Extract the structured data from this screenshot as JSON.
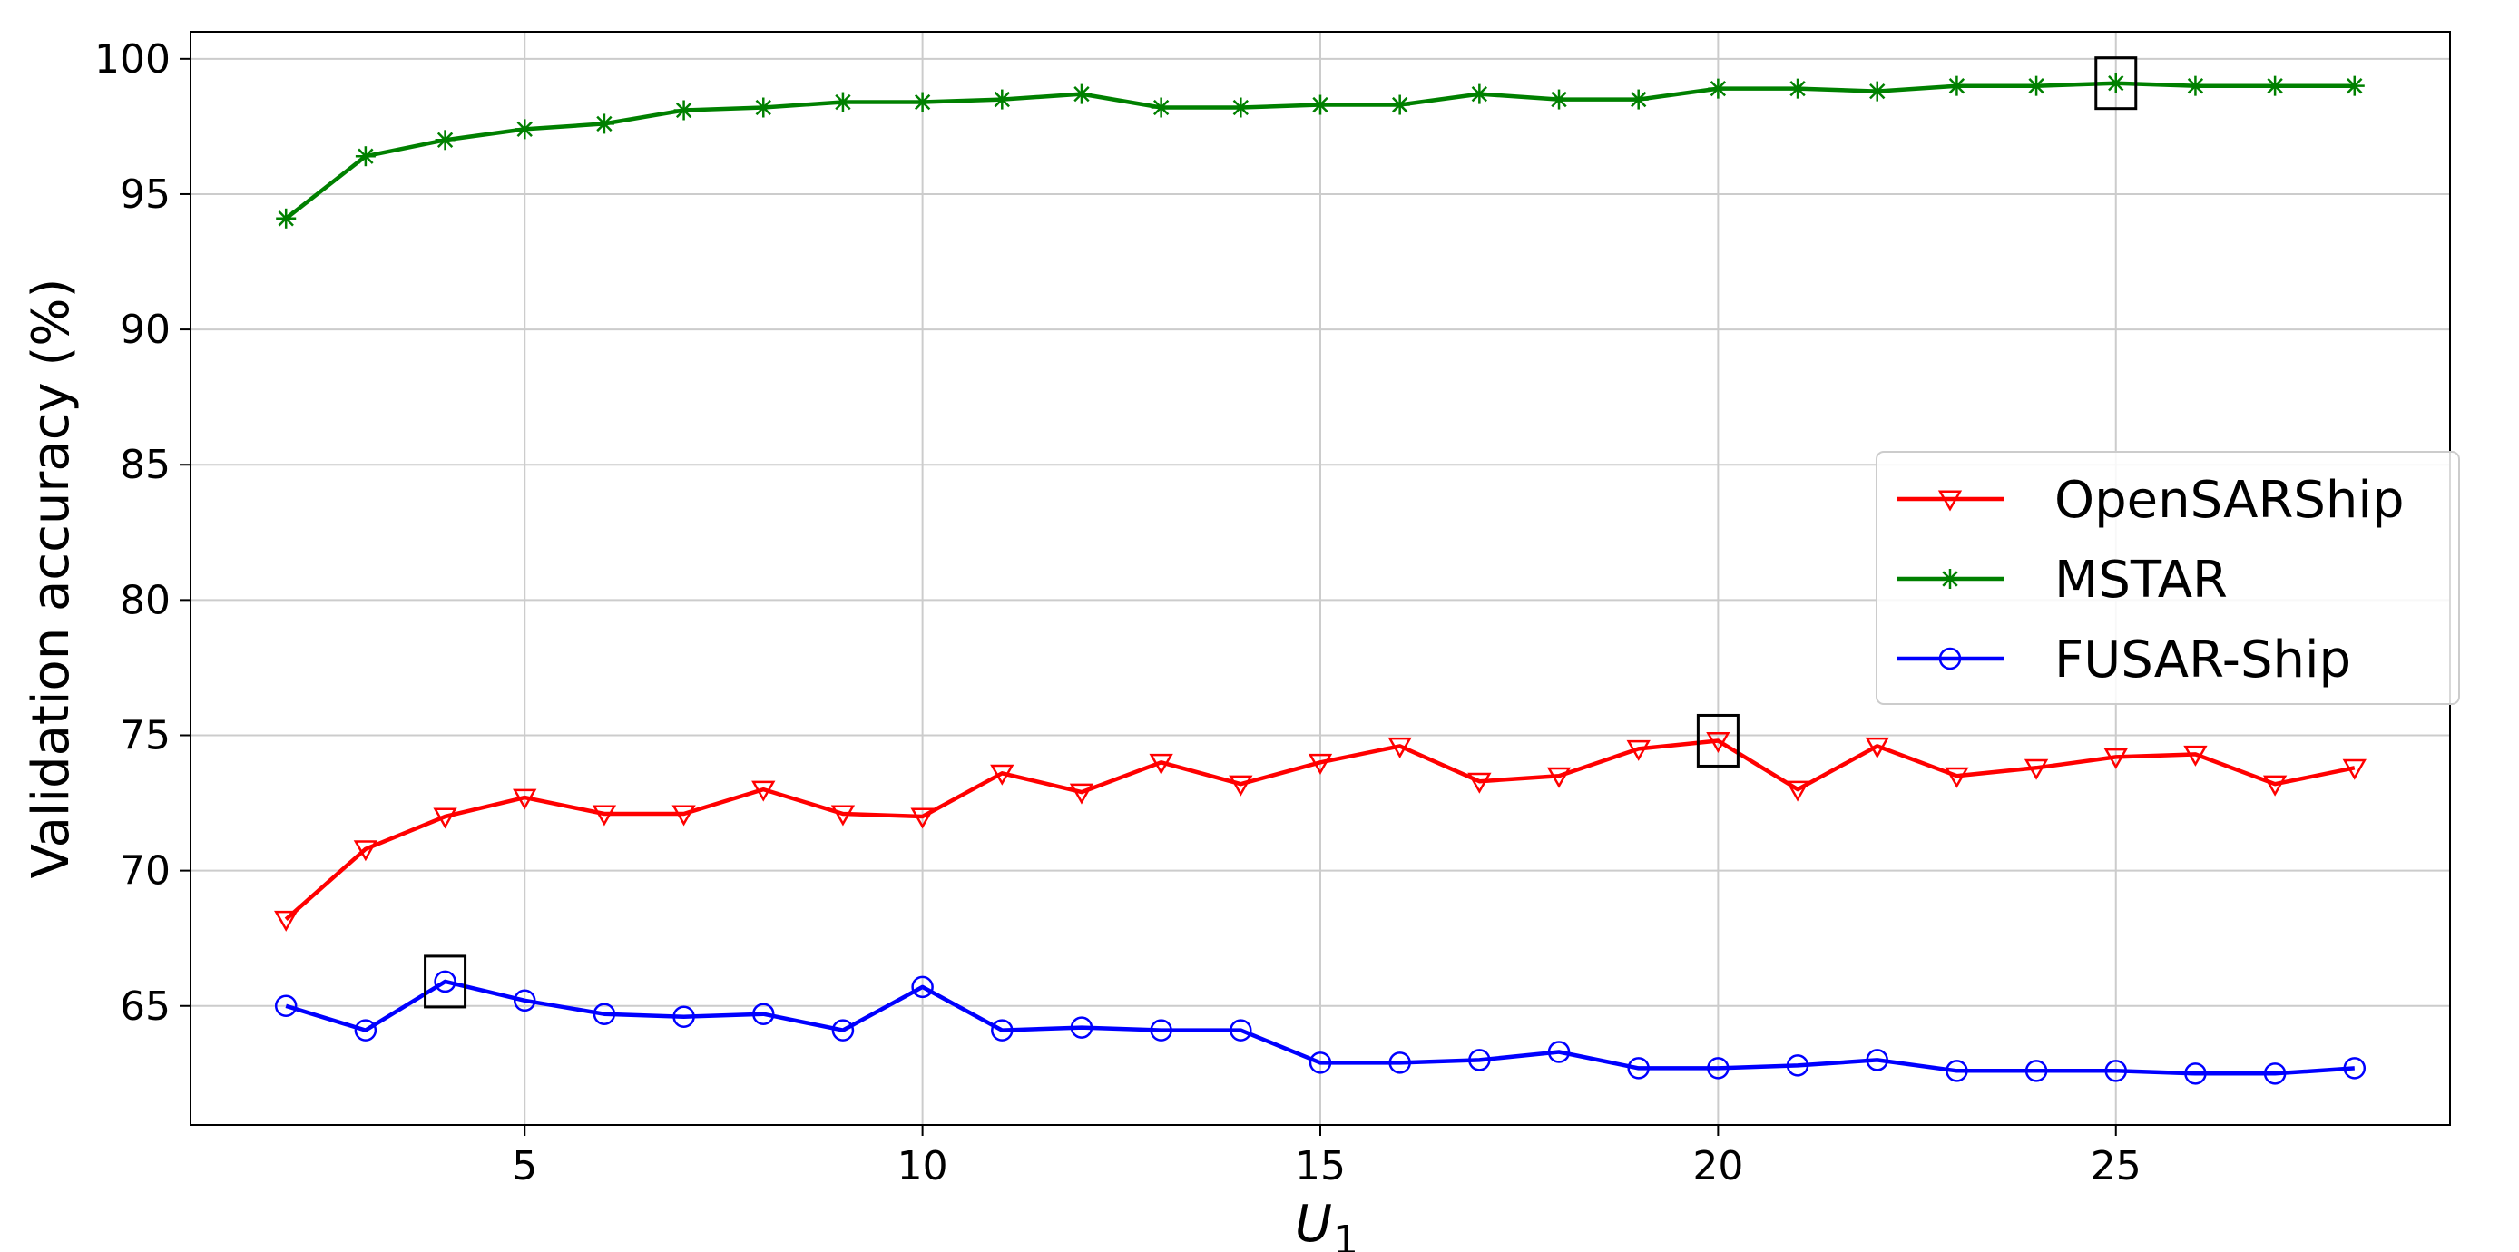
{
  "chart_data": {
    "type": "line",
    "xlabel": "U",
    "xlabel_sub": "1",
    "ylabel": "Validation accuracy (%)",
    "xlim": [
      0.8,
      29.2
    ],
    "ylim": [
      60.6,
      101
    ],
    "x_ticks": [
      5,
      10,
      15,
      20,
      25
    ],
    "y_ticks": [
      65,
      70,
      75,
      80,
      85,
      90,
      95,
      100
    ],
    "grid": true,
    "legend_position": "center-right",
    "x": [
      2,
      3,
      4,
      5,
      6,
      7,
      8,
      9,
      10,
      11,
      12,
      13,
      14,
      15,
      16,
      17,
      18,
      19,
      20,
      21,
      22,
      23,
      24,
      25,
      26,
      27,
      28
    ],
    "series": [
      {
        "name": "OpenSARShip",
        "color": "#ff0000",
        "marker": "triangle-down",
        "values": [
          68.2,
          70.8,
          72.0,
          72.7,
          72.1,
          72.1,
          73.0,
          72.1,
          72.0,
          73.6,
          72.9,
          74.0,
          73.2,
          74.0,
          74.6,
          73.3,
          73.5,
          74.5,
          74.8,
          73.0,
          74.6,
          73.5,
          73.8,
          74.2,
          74.3,
          73.2,
          73.8
        ],
        "highlight_x": 20
      },
      {
        "name": "MSTAR",
        "color": "#008000",
        "marker": "star",
        "values": [
          94.1,
          96.4,
          97.0,
          97.4,
          97.6,
          98.1,
          98.2,
          98.4,
          98.4,
          98.5,
          98.7,
          98.2,
          98.2,
          98.3,
          98.3,
          98.7,
          98.5,
          98.5,
          98.9,
          98.9,
          98.8,
          99.0,
          99.0,
          99.1,
          99.0,
          99.0,
          99.0
        ],
        "highlight_x": 25
      },
      {
        "name": "FUSAR-Ship",
        "color": "#0000ff",
        "marker": "circle",
        "values": [
          65.0,
          64.1,
          65.9,
          65.2,
          64.7,
          64.6,
          64.7,
          64.1,
          65.7,
          64.1,
          64.2,
          64.1,
          64.1,
          62.9,
          62.9,
          63.0,
          63.3,
          62.7,
          62.7,
          62.8,
          63.0,
          62.6,
          62.6,
          62.6,
          62.5,
          62.5,
          62.7
        ],
        "highlight_x": 4
      }
    ]
  }
}
